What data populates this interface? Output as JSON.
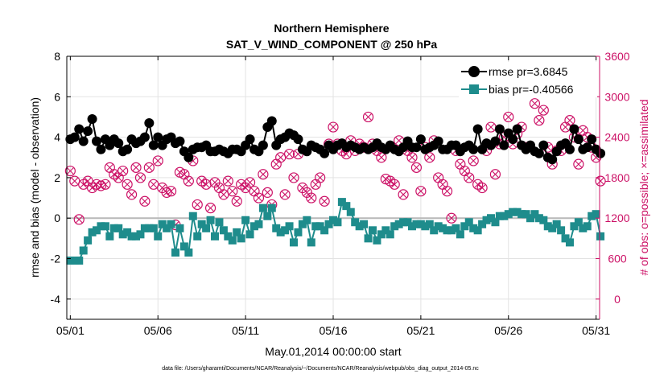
{
  "chart_data": {
    "type": "line",
    "title": "Northern Hemisphere",
    "subtitle": "SAT_V_WIND_COMPONENT @ 250 hPa",
    "xlabel": "May.01,2014 00:00:00 start",
    "ylabel": "rmse and bias (model - observation)",
    "y2label": "# of obs: o=possible; ×=assimilated",
    "footnote": "data file: /Users/gharamti/Documents/NCAR/Reanalysis/~/Documents/NCAR/Reanalysis/webpub/obs_diag_output_2014-05.nc",
    "xlim": [
      0.8,
      31.2
    ],
    "ylim": [
      -5,
      8
    ],
    "y2lim": [
      -300,
      3600
    ],
    "grid": true,
    "legend_position": "top-right",
    "x_ticks": [
      1,
      6,
      11,
      16,
      21,
      26,
      31
    ],
    "x_tick_labels": [
      "05/01",
      "05/06",
      "05/11",
      "05/16",
      "05/21",
      "05/26",
      "05/31"
    ],
    "y_ticks": [
      -4,
      -2,
      0,
      2,
      4,
      6,
      8
    ],
    "y2_ticks": [
      0,
      600,
      1200,
      1800,
      2400,
      3000,
      3600
    ],
    "reference_line": 0,
    "series": [
      {
        "name": "rmse pr=3.6845",
        "axis": "left",
        "color": "#000000",
        "marker": "circle",
        "x": [
          1.0,
          1.25,
          1.5,
          1.75,
          2.0,
          2.25,
          2.5,
          2.75,
          3.0,
          3.25,
          3.5,
          3.75,
          4.0,
          4.25,
          4.5,
          4.75,
          5.0,
          5.25,
          5.5,
          5.75,
          6.0,
          6.25,
          6.5,
          6.75,
          7.0,
          7.25,
          7.5,
          7.75,
          8.0,
          8.25,
          8.5,
          8.75,
          9.0,
          9.25,
          9.5,
          9.75,
          10.0,
          10.25,
          10.5,
          10.75,
          11.0,
          11.25,
          11.5,
          11.75,
          12.0,
          12.25,
          12.5,
          12.75,
          13.0,
          13.25,
          13.5,
          13.75,
          14.0,
          14.25,
          14.5,
          14.75,
          15.0,
          15.25,
          15.5,
          15.75,
          16.0,
          16.25,
          16.5,
          16.75,
          17.0,
          17.25,
          17.5,
          17.75,
          18.0,
          18.25,
          18.5,
          18.75,
          19.0,
          19.25,
          19.5,
          19.75,
          20.0,
          20.25,
          20.5,
          20.75,
          21.0,
          21.25,
          21.5,
          21.75,
          22.0,
          22.25,
          22.5,
          22.75,
          23.0,
          23.25,
          23.5,
          23.75,
          24.0,
          24.25,
          24.5,
          24.75,
          25.0,
          25.25,
          25.5,
          25.75,
          26.0,
          26.25,
          26.5,
          26.75,
          27.0,
          27.25,
          27.5,
          27.75,
          28.0,
          28.25,
          28.5,
          28.75,
          29.0,
          29.25,
          29.5,
          29.75,
          30.0,
          30.25,
          30.5,
          30.75,
          31.0,
          31.25
        ],
        "values": [
          3.9,
          4.0,
          4.4,
          3.8,
          4.3,
          4.9,
          3.8,
          3.4,
          3.9,
          3.6,
          3.9,
          3.7,
          3.3,
          3.4,
          3.9,
          3.7,
          3.8,
          4.0,
          4.7,
          3.6,
          4.0,
          3.6,
          3.9,
          4.0,
          3.7,
          3.8,
          3.3,
          3.0,
          3.4,
          3.5,
          3.5,
          3.6,
          3.3,
          3.3,
          3.4,
          3.3,
          3.2,
          3.4,
          3.4,
          3.3,
          3.6,
          3.9,
          3.4,
          3.3,
          3.6,
          4.5,
          4.8,
          3.6,
          3.9,
          4.0,
          4.2,
          4.1,
          3.9,
          3.4,
          3.3,
          3.6,
          3.5,
          3.4,
          3.2,
          3.6,
          3.4,
          3.6,
          3.7,
          3.5,
          3.6,
          3.5,
          3.4,
          3.5,
          3.4,
          3.5,
          3.7,
          3.5,
          3.4,
          3.6,
          3.4,
          3.3,
          3.5,
          3.8,
          3.5,
          3.5,
          3.9,
          3.4,
          3.5,
          3.6,
          3.8,
          3.4,
          3.4,
          3.6,
          3.6,
          3.3,
          3.5,
          3.6,
          3.4,
          4.4,
          3.4,
          3.7,
          3.6,
          3.8,
          4.4,
          3.6,
          4.2,
          3.9,
          4.4,
          3.6,
          3.4,
          3.6,
          3.3,
          3.2,
          3.6,
          3.0,
          2.9,
          3.3,
          3.6,
          3.7,
          3.4,
          4.4,
          3.9,
          3.4,
          3.5,
          3.9,
          3.4,
          3.2
        ]
      },
      {
        "name": "bias pr=-0.40566",
        "axis": "left",
        "color": "#1e8c8c",
        "marker": "square",
        "x": [
          1.0,
          1.25,
          1.5,
          1.75,
          2.0,
          2.25,
          2.5,
          2.75,
          3.0,
          3.25,
          3.5,
          3.75,
          4.0,
          4.25,
          4.5,
          4.75,
          5.0,
          5.25,
          5.5,
          5.75,
          6.0,
          6.25,
          6.5,
          6.75,
          7.0,
          7.25,
          7.5,
          7.75,
          8.0,
          8.25,
          8.5,
          8.75,
          9.0,
          9.25,
          9.5,
          9.75,
          10.0,
          10.25,
          10.5,
          10.75,
          11.0,
          11.25,
          11.5,
          11.75,
          12.0,
          12.25,
          12.5,
          12.75,
          13.0,
          13.25,
          13.5,
          13.75,
          14.0,
          14.25,
          14.5,
          14.75,
          15.0,
          15.25,
          15.5,
          15.75,
          16.0,
          16.25,
          16.5,
          16.75,
          17.0,
          17.25,
          17.5,
          17.75,
          18.0,
          18.25,
          18.5,
          18.75,
          19.0,
          19.25,
          19.5,
          19.75,
          20.0,
          20.25,
          20.5,
          20.75,
          21.0,
          21.25,
          21.5,
          21.75,
          22.0,
          22.25,
          22.5,
          22.75,
          23.0,
          23.25,
          23.5,
          23.75,
          24.0,
          24.25,
          24.5,
          24.75,
          25.0,
          25.25,
          25.5,
          25.75,
          26.0,
          26.25,
          26.5,
          26.75,
          27.0,
          27.25,
          27.5,
          27.75,
          28.0,
          28.25,
          28.5,
          28.75,
          29.0,
          29.25,
          29.5,
          29.75,
          30.0,
          30.25,
          30.5,
          30.75,
          31.0,
          31.25
        ],
        "values": [
          -2.1,
          -2.1,
          -2.1,
          -1.6,
          -1.1,
          -0.7,
          -0.6,
          -0.4,
          -0.4,
          -0.9,
          -0.5,
          -0.5,
          -0.8,
          -0.7,
          -0.9,
          -0.9,
          -0.8,
          -0.5,
          -0.5,
          -0.5,
          -0.9,
          -0.3,
          -0.5,
          -0.3,
          -1.7,
          -0.5,
          -1.4,
          -1.7,
          0.1,
          -0.9,
          -0.3,
          -0.5,
          -0.1,
          -0.9,
          -0.2,
          -0.6,
          -0.9,
          -1.1,
          -0.7,
          -1.0,
          -0.1,
          -0.8,
          -0.4,
          -0.3,
          0.5,
          0.1,
          0.5,
          -0.5,
          -0.7,
          -0.6,
          -0.4,
          -1.2,
          -0.7,
          -0.3,
          -0.1,
          -1.2,
          -0.4,
          -0.4,
          -0.6,
          -0.3,
          -0.1,
          -0.2,
          0.8,
          0.6,
          0.3,
          -0.2,
          -0.4,
          -0.3,
          -1.0,
          -0.6,
          -1.1,
          -0.8,
          -0.6,
          -0.8,
          -0.4,
          -0.3,
          -0.2,
          -0.2,
          -0.4,
          -0.3,
          -0.3,
          -0.4,
          -0.3,
          -0.6,
          -0.4,
          -0.5,
          -0.6,
          -0.6,
          -0.5,
          -0.8,
          -0.4,
          -0.2,
          -0.5,
          -0.6,
          -0.3,
          -0.1,
          0.0,
          -0.2,
          0.1,
          0.1,
          0.2,
          0.3,
          0.3,
          0.2,
          0.2,
          0.0,
          0.2,
          0.0,
          -0.1,
          -0.4,
          -0.5,
          -0.3,
          -0.6,
          -1.0,
          -1.2,
          -0.4,
          -0.2,
          -0.5,
          -0.4,
          0.1,
          0.2,
          -0.9
        ]
      },
      {
        "name": "",
        "axis": "right",
        "color": "#cc1166",
        "marker": "circle-open",
        "x": [
          1.0,
          1.25,
          1.5,
          1.75,
          2.0,
          2.25,
          2.5,
          2.75,
          3.0,
          3.25,
          3.5,
          3.75,
          4.0,
          4.25,
          4.5,
          4.75,
          5.0,
          5.25,
          5.5,
          5.75,
          6.0,
          6.25,
          6.5,
          6.75,
          7.0,
          7.25,
          7.5,
          7.75,
          8.0,
          8.25,
          8.5,
          8.75,
          9.0,
          9.25,
          9.5,
          9.75,
          10.0,
          10.25,
          10.5,
          10.75,
          11.0,
          11.25,
          11.5,
          11.75,
          12.0,
          12.25,
          12.5,
          12.75,
          13.0,
          13.25,
          13.5,
          13.75,
          14.0,
          14.25,
          14.5,
          14.75,
          15.0,
          15.25,
          15.5,
          15.75,
          16.0,
          16.25,
          16.5,
          16.75,
          17.0,
          17.25,
          17.5,
          17.75,
          18.0,
          18.25,
          18.5,
          18.75,
          19.0,
          19.25,
          19.5,
          19.75,
          20.0,
          20.25,
          20.5,
          20.75,
          21.0,
          21.25,
          21.5,
          21.75,
          22.0,
          22.25,
          22.5,
          22.75,
          23.0,
          23.25,
          23.5,
          23.75,
          24.0,
          24.25,
          24.5,
          24.75,
          25.0,
          25.25,
          25.5,
          25.75,
          26.0,
          26.25,
          26.5,
          26.75,
          27.0,
          27.25,
          27.5,
          27.75,
          28.0,
          28.25,
          28.5,
          28.75,
          29.0,
          29.25,
          29.5,
          29.75,
          30.0,
          30.25,
          30.5,
          30.75,
          31.0,
          31.25
        ],
        "values": [
          1900,
          1750,
          1180,
          1700,
          1750,
          1650,
          1700,
          1680,
          1700,
          1950,
          1850,
          1800,
          1900,
          1700,
          1550,
          1950,
          1800,
          1450,
          1950,
          1700,
          2050,
          1650,
          1580,
          1600,
          1100,
          1880,
          1850,
          1750,
          2050,
          1400,
          1750,
          1700,
          1350,
          1730,
          1650,
          1550,
          1750,
          1600,
          1450,
          1700,
          1650,
          1730,
          1600,
          1500,
          1850,
          1580,
          1400,
          2000,
          2100,
          1550,
          2150,
          1800,
          2150,
          1650,
          1580,
          1500,
          1700,
          1800,
          1450,
          2300,
          2550,
          2300,
          2200,
          2150,
          2350,
          2200,
          2300,
          2250,
          2700,
          2300,
          2200,
          2100,
          1780,
          1750,
          1700,
          2350,
          1550,
          2200,
          2100,
          1950,
          1600,
          2250,
          2100,
          2350,
          1800,
          1700,
          1600,
          1200,
          2200,
          2000,
          1900,
          1800,
          2050,
          1700,
          1650,
          2200,
          2550,
          1850,
          2300,
          2400,
          2700,
          2300,
          2450,
          2550,
          2250,
          3100,
          2900,
          2650,
          2800,
          2250,
          2000,
          2200,
          2200,
          2550,
          2650,
          2400,
          2000,
          2500,
          2400,
          2250,
          2100,
          1750
        ]
      },
      {
        "name": "",
        "axis": "right",
        "color": "#cc1166",
        "marker": "x",
        "x": [
          1.0,
          1.25,
          1.5,
          1.75,
          2.0,
          2.25,
          2.5,
          2.75,
          3.0,
          3.25,
          3.5,
          3.75,
          4.0,
          4.25,
          4.5,
          4.75,
          5.0,
          5.25,
          5.5,
          5.75,
          6.0,
          6.25,
          6.5,
          6.75,
          7.0,
          7.25,
          7.5,
          7.75,
          8.0,
          8.25,
          8.5,
          8.75,
          9.0,
          9.25,
          9.5,
          9.75,
          10.0,
          10.25,
          10.5,
          10.75,
          11.0,
          11.25,
          11.5,
          11.75,
          12.0,
          12.25,
          12.5,
          12.75,
          13.0,
          13.25,
          13.5,
          13.75,
          14.0,
          14.25,
          14.5,
          14.75,
          15.0,
          15.25,
          15.5,
          15.75,
          16.0,
          16.25,
          16.5,
          16.75,
          17.0,
          17.25,
          17.5,
          17.75,
          18.0,
          18.25,
          18.5,
          18.75,
          19.0,
          19.25,
          19.5,
          19.75,
          20.0,
          20.25,
          20.5,
          20.75,
          21.0,
          21.25,
          21.5,
          21.75,
          22.0,
          22.25,
          22.5,
          22.75,
          23.0,
          23.25,
          23.5,
          23.75,
          24.0,
          24.25,
          24.5,
          24.75,
          25.0,
          25.25,
          25.5,
          25.75,
          26.0,
          26.25,
          26.5,
          26.75,
          27.0,
          27.25,
          27.5,
          27.75,
          28.0,
          28.25,
          28.5,
          28.75,
          29.0,
          29.25,
          29.5,
          29.75,
          30.0,
          30.25,
          30.5,
          30.75,
          31.0,
          31.25
        ],
        "values": [
          1900,
          1750,
          1180,
          1700,
          1750,
          1650,
          1700,
          1680,
          1700,
          1950,
          1850,
          1800,
          1900,
          1700,
          1550,
          1950,
          1800,
          1450,
          1950,
          1700,
          2050,
          1650,
          1580,
          1600,
          1100,
          1880,
          1850,
          1750,
          2050,
          1400,
          1750,
          1700,
          1350,
          1730,
          1650,
          1550,
          1750,
          1600,
          1450,
          1700,
          1650,
          1730,
          1600,
          1500,
          1850,
          1580,
          1400,
          2000,
          2100,
          1550,
          2150,
          1800,
          2150,
          1650,
          1580,
          1500,
          1700,
          1800,
          1450,
          2300,
          2550,
          2300,
          2200,
          2150,
          2350,
          2200,
          2300,
          2250,
          2700,
          2300,
          2200,
          2100,
          1780,
          1750,
          1700,
          2350,
          1550,
          2200,
          2100,
          1950,
          1600,
          2250,
          2100,
          2350,
          1800,
          1700,
          1600,
          1200,
          2200,
          2000,
          1900,
          1800,
          2050,
          1700,
          1650,
          2200,
          2550,
          1850,
          2300,
          2400,
          2700,
          2300,
          2450,
          2550,
          2250,
          3100,
          2900,
          2650,
          2800,
          2250,
          2000,
          2200,
          2200,
          2550,
          2650,
          2400,
          2000,
          2500,
          2400,
          2250,
          2100,
          1750
        ]
      }
    ]
  }
}
